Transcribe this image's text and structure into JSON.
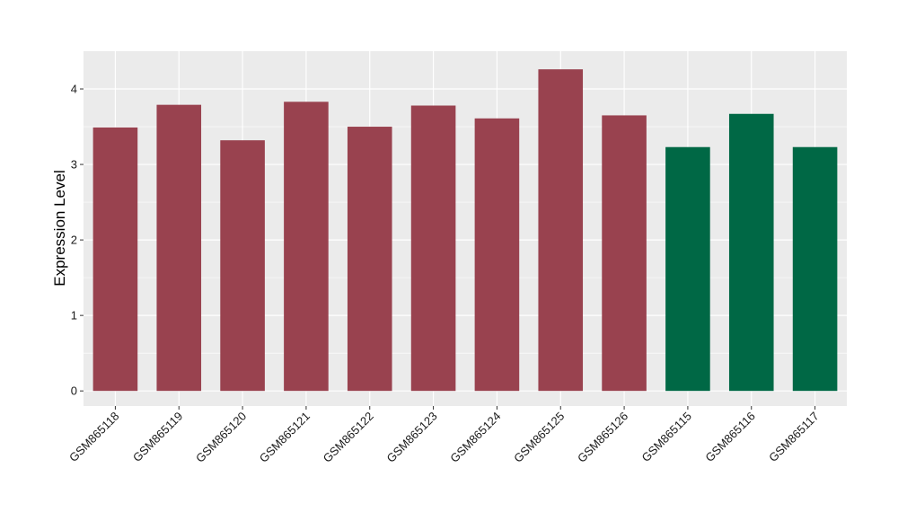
{
  "chart_data": {
    "type": "bar",
    "title": "",
    "xlabel": "",
    "ylabel": "Expression Level",
    "ylim": [
      -0.2,
      4.5
    ],
    "yticks": [
      0,
      1,
      2,
      3,
      4
    ],
    "grid": true,
    "categories": [
      "GSM865118",
      "GSM865119",
      "GSM865120",
      "GSM865121",
      "GSM865122",
      "GSM865123",
      "GSM865124",
      "GSM865125",
      "GSM865126",
      "GSM865115",
      "GSM865116",
      "GSM865117"
    ],
    "values": [
      3.49,
      3.79,
      3.32,
      3.83,
      3.5,
      3.78,
      3.61,
      4.26,
      3.65,
      3.23,
      3.67,
      3.23
    ],
    "bar_colors": [
      "#99424f",
      "#99424f",
      "#99424f",
      "#99424f",
      "#99424f",
      "#99424f",
      "#99424f",
      "#99424f",
      "#99424f",
      "#006845",
      "#006845",
      "#006845"
    ],
    "panel_background": "#ebebeb",
    "grid_color": "#ffffff"
  }
}
